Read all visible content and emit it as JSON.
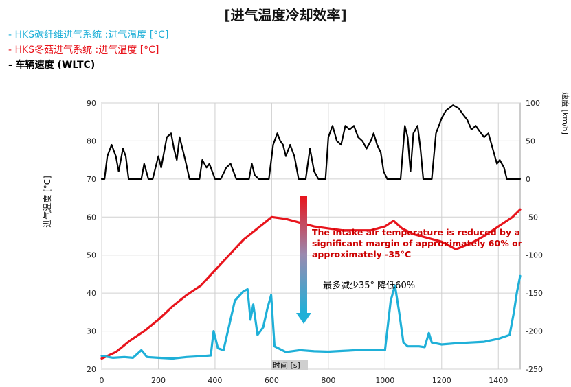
{
  "title": "[进气温度冷却效率]",
  "legend": [
    {
      "text": "- HKS碳纤维进气系统 :进气温度 [°C]",
      "color": "#1fb0d8"
    },
    {
      "text": "- HKS冬菇进气系统 :进气温度 [°C]",
      "color": "#e8141c"
    },
    {
      "text": "- 车辆速度 (WLTC)",
      "color": "#000000"
    }
  ],
  "chart_data": {
    "type": "line",
    "xlabel": "时间 [s]",
    "ylabel": "进气温度 [°C]",
    "y2label": "速度 [km/h]",
    "xlim": [
      0,
      1477
    ],
    "ylim": [
      20,
      90
    ],
    "y2lim": [
      -250,
      100
    ],
    "xticks": [
      "0",
      "200",
      "400",
      "600",
      "800",
      "1000",
      "1200",
      "1400"
    ],
    "yticks": [
      "20",
      "30",
      "40",
      "50",
      "60",
      "70",
      "80",
      "90"
    ],
    "y2ticks": [
      "-250",
      "-200",
      "-150",
      "-100",
      "-50",
      "0",
      "50",
      "100"
    ],
    "grid": true,
    "series": [
      {
        "color": "#e8141c",
        "axis": "left",
        "points": [
          [
            0,
            22.8
          ],
          [
            50,
            24.5
          ],
          [
            100,
            27.5
          ],
          [
            150,
            30
          ],
          [
            200,
            33
          ],
          [
            250,
            36.5
          ],
          [
            300,
            39.5
          ],
          [
            350,
            42
          ],
          [
            400,
            46
          ],
          [
            450,
            50
          ],
          [
            500,
            54
          ],
          [
            550,
            57
          ],
          [
            600,
            60
          ],
          [
            650,
            59.5
          ],
          [
            700,
            58.5
          ],
          [
            750,
            57.5
          ],
          [
            800,
            57
          ],
          [
            850,
            56.5
          ],
          [
            900,
            56.5
          ],
          [
            950,
            56.5
          ],
          [
            1000,
            57.5
          ],
          [
            1030,
            59
          ],
          [
            1060,
            57
          ],
          [
            1100,
            55.5
          ],
          [
            1150,
            54.5
          ],
          [
            1200,
            53.5
          ],
          [
            1250,
            51.5
          ],
          [
            1300,
            53
          ],
          [
            1350,
            55
          ],
          [
            1400,
            57.5
          ],
          [
            1450,
            60
          ],
          [
            1477,
            62
          ]
        ]
      },
      {
        "color": "#1fb0d8",
        "axis": "left",
        "points": [
          [
            0,
            23.5
          ],
          [
            40,
            23
          ],
          [
            80,
            23.2
          ],
          [
            110,
            23
          ],
          [
            140,
            25
          ],
          [
            160,
            23.2
          ],
          [
            200,
            23
          ],
          [
            250,
            22.8
          ],
          [
            300,
            23.2
          ],
          [
            350,
            23.4
          ],
          [
            385,
            23.6
          ],
          [
            395,
            30
          ],
          [
            410,
            25.5
          ],
          [
            430,
            25
          ],
          [
            470,
            38
          ],
          [
            500,
            40.5
          ],
          [
            515,
            41
          ],
          [
            525,
            33
          ],
          [
            535,
            37
          ],
          [
            550,
            29
          ],
          [
            570,
            31
          ],
          [
            585,
            36
          ],
          [
            598,
            39.5
          ],
          [
            610,
            26
          ],
          [
            650,
            24.5
          ],
          [
            700,
            25
          ],
          [
            750,
            24.7
          ],
          [
            800,
            24.6
          ],
          [
            850,
            24.8
          ],
          [
            900,
            25
          ],
          [
            950,
            25
          ],
          [
            1000,
            25
          ],
          [
            1020,
            38
          ],
          [
            1035,
            42
          ],
          [
            1050,
            35
          ],
          [
            1065,
            27
          ],
          [
            1080,
            26
          ],
          [
            1120,
            26
          ],
          [
            1140,
            25.8
          ],
          [
            1155,
            29.5
          ],
          [
            1165,
            27
          ],
          [
            1200,
            26.5
          ],
          [
            1250,
            26.8
          ],
          [
            1300,
            27
          ],
          [
            1350,
            27.2
          ],
          [
            1400,
            28
          ],
          [
            1440,
            29
          ],
          [
            1455,
            35
          ],
          [
            1465,
            40
          ],
          [
            1477,
            44.5
          ]
        ]
      },
      {
        "color": "#000000",
        "axis": "right",
        "points": [
          [
            0,
            0
          ],
          [
            10,
            0
          ],
          [
            20,
            30
          ],
          [
            35,
            45
          ],
          [
            50,
            30
          ],
          [
            60,
            10
          ],
          [
            75,
            40
          ],
          [
            85,
            30
          ],
          [
            95,
            0
          ],
          [
            140,
            0
          ],
          [
            150,
            20
          ],
          [
            165,
            0
          ],
          [
            180,
            0
          ],
          [
            190,
            15
          ],
          [
            200,
            30
          ],
          [
            210,
            15
          ],
          [
            220,
            35
          ],
          [
            230,
            55
          ],
          [
            245,
            60
          ],
          [
            255,
            40
          ],
          [
            265,
            25
          ],
          [
            275,
            55
          ],
          [
            285,
            40
          ],
          [
            295,
            25
          ],
          [
            310,
            0
          ],
          [
            345,
            0
          ],
          [
            355,
            25
          ],
          [
            370,
            15
          ],
          [
            380,
            20
          ],
          [
            390,
            10
          ],
          [
            400,
            0
          ],
          [
            420,
            0
          ],
          [
            440,
            15
          ],
          [
            455,
            20
          ],
          [
            475,
            0
          ],
          [
            520,
            0
          ],
          [
            530,
            20
          ],
          [
            540,
            5
          ],
          [
            555,
            0
          ],
          [
            590,
            0
          ],
          [
            605,
            45
          ],
          [
            620,
            60
          ],
          [
            630,
            50
          ],
          [
            640,
            45
          ],
          [
            650,
            30
          ],
          [
            665,
            45
          ],
          [
            680,
            30
          ],
          [
            695,
            0
          ],
          [
            720,
            0
          ],
          [
            735,
            40
          ],
          [
            750,
            10
          ],
          [
            765,
            0
          ],
          [
            790,
            0
          ],
          [
            800,
            55
          ],
          [
            815,
            70
          ],
          [
            830,
            50
          ],
          [
            845,
            45
          ],
          [
            860,
            70
          ],
          [
            875,
            65
          ],
          [
            890,
            70
          ],
          [
            905,
            55
          ],
          [
            920,
            50
          ],
          [
            935,
            40
          ],
          [
            950,
            50
          ],
          [
            960,
            60
          ],
          [
            972,
            45
          ],
          [
            985,
            35
          ],
          [
            995,
            10
          ],
          [
            1008,
            0
          ],
          [
            1055,
            0
          ],
          [
            1070,
            70
          ],
          [
            1080,
            55
          ],
          [
            1090,
            10
          ],
          [
            1100,
            60
          ],
          [
            1115,
            70
          ],
          [
            1125,
            40
          ],
          [
            1135,
            0
          ],
          [
            1165,
            0
          ],
          [
            1180,
            60
          ],
          [
            1200,
            80
          ],
          [
            1215,
            90
          ],
          [
            1240,
            97
          ],
          [
            1260,
            93
          ],
          [
            1275,
            85
          ],
          [
            1290,
            78
          ],
          [
            1305,
            65
          ],
          [
            1320,
            70
          ],
          [
            1335,
            62
          ],
          [
            1350,
            55
          ],
          [
            1365,
            60
          ],
          [
            1380,
            40
          ],
          [
            1395,
            20
          ],
          [
            1405,
            25
          ],
          [
            1420,
            15
          ],
          [
            1430,
            0
          ],
          [
            1477,
            0
          ]
        ]
      }
    ],
    "annotations": [
      {
        "text": "The intake air temperature is reduced by a",
        "color": "#cc0000"
      },
      {
        "text": "significant margin of approximately 60% or",
        "color": "#cc0000"
      },
      {
        "text": "approximately -35°C",
        "color": "#cc0000"
      },
      {
        "text": "最多减少35°  降低60%",
        "color": "#000000"
      }
    ]
  }
}
